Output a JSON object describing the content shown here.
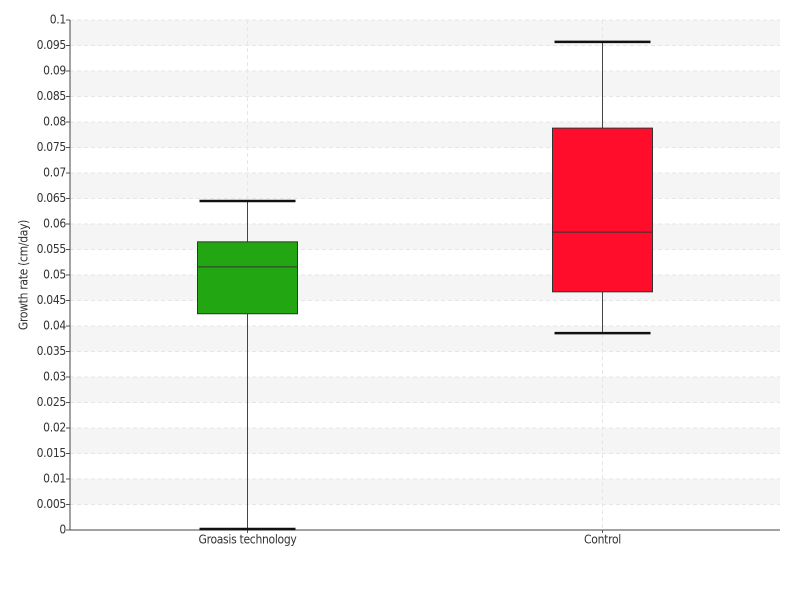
{
  "chart_data": {
    "type": "box",
    "y_label": "Growth rate (cm/day)",
    "categories": [
      "Groasis technology",
      "Control"
    ],
    "colors": [
      "#22a612",
      "#ff0d2a"
    ],
    "min": [
      0.0002,
      0.0386
    ],
    "q1": [
      0.0424,
      0.0467
    ],
    "median": [
      0.0516,
      0.0584
    ],
    "q3": [
      0.0565,
      0.0788
    ],
    "max": [
      0.0645,
      0.0957
    ],
    "ylim": [
      0,
      0.1
    ],
    "yticks": [
      0,
      0.005,
      0.01,
      0.015,
      0.02,
      0.025,
      0.03,
      0.035,
      0.04,
      0.045,
      0.05,
      0.055,
      0.06,
      0.065,
      0.07,
      0.075,
      0.08,
      0.085,
      0.09,
      0.095,
      0.1
    ],
    "grid": true
  }
}
